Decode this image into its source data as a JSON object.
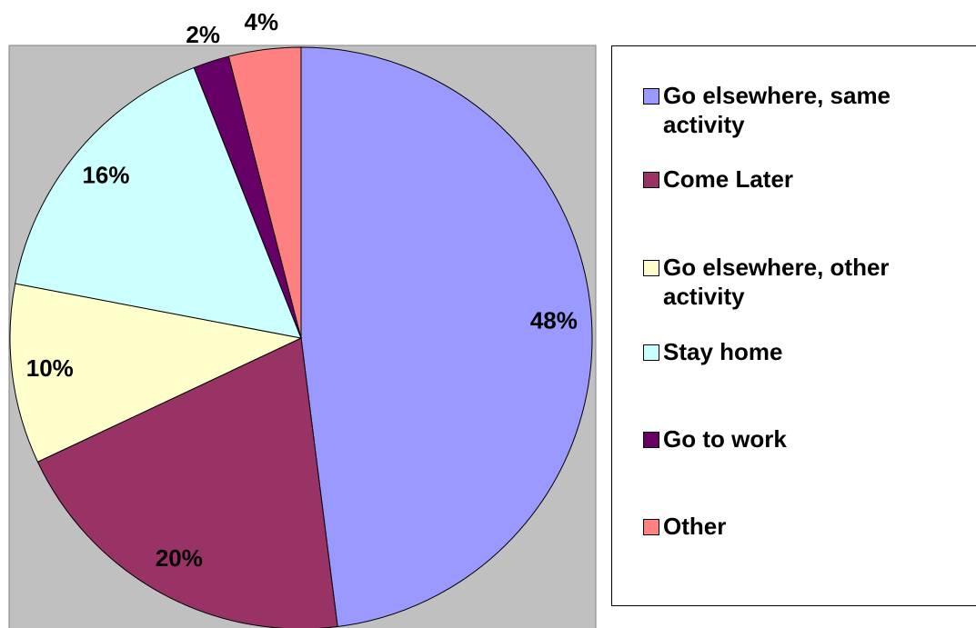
{
  "chart_data": {
    "type": "pie",
    "categories": [
      "Go elsewhere, same activity",
      "Come Later",
      "Go elsewhere, other activity",
      "Stay home",
      "Go to work",
      "Other"
    ],
    "values": [
      48,
      20,
      10,
      16,
      2,
      4
    ],
    "value_labels": [
      "48%",
      "20%",
      "10%",
      "16%",
      "2%",
      "4%"
    ],
    "colors": [
      "#9999ff",
      "#993366",
      "#ffffcc",
      "#ccffff",
      "#660066",
      "#ff8080"
    ],
    "legend": "right"
  }
}
